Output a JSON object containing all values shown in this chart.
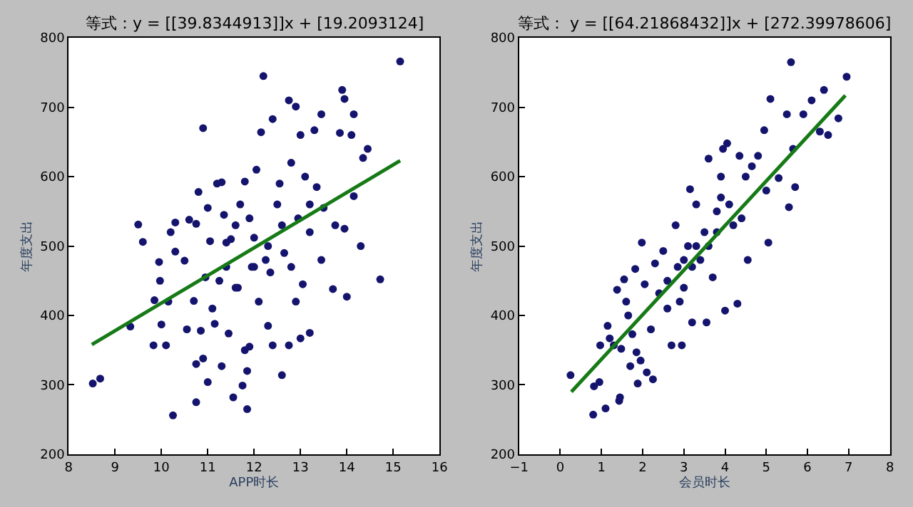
{
  "chart_data": [
    {
      "type": "scatter",
      "title": "等式：y = [[39.8344913]]x + [19.2093124]",
      "xlabel": "APP时长",
      "ylabel": "年度支出",
      "xlim": [
        8,
        16
      ],
      "xticks": [
        8,
        9,
        10,
        11,
        12,
        13,
        14,
        15,
        16
      ],
      "ylim": [
        200,
        800
      ],
      "yticks": [
        200,
        300,
        400,
        500,
        600,
        700,
        800
      ],
      "series": [
        {
          "marker": "circle",
          "color": "#14146e",
          "x": [
            8.52,
            8.68,
            9.33,
            9.5,
            9.6,
            9.83,
            9.85,
            9.95,
            9.97,
            10.0,
            10.1,
            10.15,
            10.2,
            10.3,
            10.3,
            10.25,
            10.5,
            10.55,
            10.6,
            10.7,
            10.75,
            10.75,
            10.75,
            10.8,
            10.85,
            10.9,
            10.9,
            10.95,
            11.0,
            11.0,
            11.05,
            11.1,
            11.15,
            11.2,
            11.25,
            11.3,
            11.3,
            11.35,
            11.4,
            11.45,
            11.5,
            11.55,
            11.6,
            11.65,
            11.7,
            11.75,
            11.8,
            11.8,
            11.85,
            11.85,
            11.9,
            11.95,
            12.0,
            12.05,
            12.1,
            12.15,
            12.2,
            12.25,
            12.3,
            12.35,
            12.4,
            12.4,
            12.5,
            12.55,
            12.6,
            12.65,
            12.75,
            12.75,
            12.8,
            12.9,
            12.9,
            12.95,
            13.0,
            13.0,
            13.05,
            13.1,
            13.2,
            13.2,
            13.3,
            13.35,
            13.45,
            13.45,
            13.5,
            13.7,
            13.75,
            13.85,
            13.9,
            13.95,
            13.95,
            14.0,
            14.1,
            14.15,
            14.15,
            14.3,
            14.35,
            14.45,
            14.72,
            15.15,
            12.0,
            11.6,
            12.3,
            11.9,
            12.6,
            11.4,
            12.8,
            13.2
          ],
          "values": [
            302,
            309,
            384,
            531,
            506,
            357,
            422,
            477,
            450,
            387,
            357,
            420,
            520,
            492,
            534,
            256,
            479,
            380,
            538,
            421,
            532,
            330,
            275,
            578,
            378,
            670,
            338,
            455,
            304,
            555,
            507,
            410,
            388,
            590,
            450,
            327,
            592,
            545,
            470,
            374,
            510,
            282,
            530,
            440,
            560,
            299,
            593,
            350,
            265,
            320,
            355,
            470,
            512,
            610,
            420,
            664,
            745,
            480,
            385,
            462,
            357,
            683,
            560,
            590,
            314,
            490,
            710,
            357,
            620,
            701,
            420,
            540,
            367,
            660,
            445,
            600,
            375,
            520,
            667,
            585,
            690,
            480,
            555,
            438,
            530,
            663,
            725,
            712,
            525,
            427,
            660,
            690,
            572,
            500,
            627,
            640,
            452,
            766,
            470,
            440,
            500,
            540,
            530,
            505,
            470,
            560
          ]
        },
        {
          "type": "line",
          "color": "#167a16",
          "x": [
            8.5,
            15.15
          ],
          "values": [
            358,
            623
          ]
        }
      ]
    },
    {
      "type": "scatter",
      "title": "等式： y = [[64.21868432]]x + [272.39978606]",
      "xlabel": "会员时长",
      "ylabel": "年度支出",
      "xlim": [
        -1,
        8
      ],
      "xticks": [
        {
          "value": -1,
          "label": "−1"
        },
        0,
        1,
        2,
        3,
        4,
        5,
        6,
        7,
        8
      ],
      "ylim": [
        200,
        800
      ],
      "yticks": [
        200,
        300,
        400,
        500,
        600,
        700,
        800
      ],
      "series": [
        {
          "marker": "circle",
          "color": "#14146e",
          "x": [
            0.25,
            0.8,
            0.82,
            0.95,
            0.97,
            1.1,
            1.15,
            1.2,
            1.3,
            1.38,
            1.43,
            1.45,
            1.48,
            1.55,
            1.6,
            1.65,
            1.7,
            1.75,
            1.82,
            1.85,
            1.88,
            1.95,
            1.98,
            2.05,
            2.1,
            2.2,
            2.25,
            2.3,
            2.4,
            2.5,
            2.6,
            2.7,
            2.8,
            2.85,
            2.95,
            3.0,
            3.1,
            3.15,
            3.2,
            3.3,
            3.4,
            3.5,
            3.55,
            3.6,
            3.7,
            3.8,
            3.9,
            3.95,
            4.0,
            4.05,
            4.2,
            4.3,
            4.35,
            4.5,
            4.55,
            4.65,
            4.8,
            4.95,
            5.0,
            5.05,
            5.1,
            5.3,
            5.5,
            5.55,
            5.6,
            5.65,
            5.7,
            5.9,
            6.1,
            6.3,
            6.4,
            6.5,
            6.75,
            6.95,
            3.0,
            3.3,
            2.6,
            3.8,
            4.1,
            2.9,
            3.6,
            4.4,
            3.2,
            3.9
          ],
          "values": [
            314,
            257,
            298,
            304,
            357,
            266,
            385,
            367,
            357,
            437,
            277,
            282,
            352,
            452,
            420,
            400,
            327,
            373,
            467,
            347,
            302,
            335,
            505,
            445,
            318,
            380,
            308,
            475,
            432,
            493,
            410,
            357,
            530,
            470,
            357,
            440,
            500,
            582,
            390,
            560,
            480,
            520,
            390,
            626,
            455,
            550,
            570,
            640,
            407,
            648,
            530,
            417,
            630,
            600,
            480,
            615,
            630,
            667,
            580,
            505,
            712,
            598,
            690,
            556,
            765,
            640,
            585,
            690,
            710,
            665,
            725,
            660,
            684,
            744,
            480,
            500,
            450,
            520,
            560,
            420,
            500,
            540,
            470,
            600
          ]
        },
        {
          "type": "line",
          "color": "#167a16",
          "x": [
            0.27,
            6.92
          ],
          "values": [
            290,
            717
          ]
        }
      ]
    }
  ]
}
